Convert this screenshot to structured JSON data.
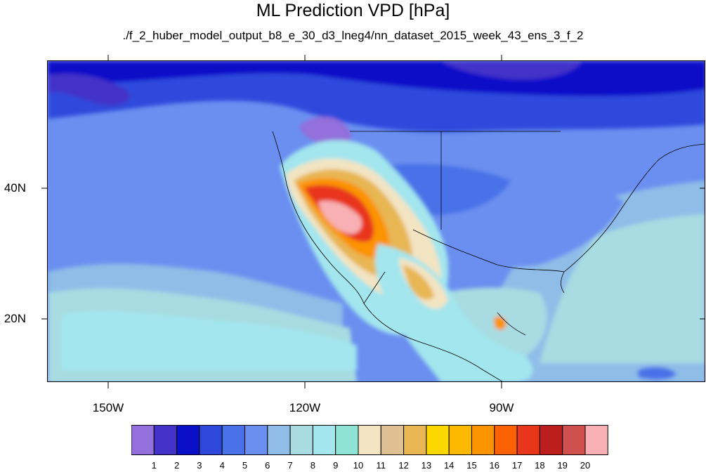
{
  "title": "ML Prediction VPD [hPa]",
  "subtitle": "./f_2_huber_model_output_b8_e_30_d3_lneg4/nn_dataset_2015_week_43_ens_3_f_2",
  "map": {
    "region": "North America and adjacent Pacific/Atlantic",
    "lon_range": [
      -160,
      -60
    ],
    "lat_range": [
      10,
      59
    ],
    "y_ticks": [
      {
        "value": 40,
        "label": "40N"
      },
      {
        "value": 20,
        "label": "20N"
      }
    ],
    "x_ticks": [
      {
        "value": -150,
        "label": "150W"
      },
      {
        "value": -120,
        "label": "120W"
      },
      {
        "value": -90,
        "label": "90W"
      }
    ],
    "highest_values_region": "Southwestern United States (Nevada, Arizona, Southern California)",
    "lowest_values_region": "Northern Pacific and Canada"
  },
  "colorbar": {
    "labels": [
      "1",
      "2",
      "3",
      "4",
      "5",
      "6",
      "7",
      "8",
      "9",
      "10",
      "11",
      "12",
      "13",
      "14",
      "15",
      "16",
      "17",
      "18",
      "19",
      "20"
    ],
    "colors": [
      "#9370db",
      "#4332c8",
      "#0a0fc8",
      "#2e48dc",
      "#4a72e8",
      "#6a8ff0",
      "#8fbde8",
      "#a8dce2",
      "#a3e6ee",
      "#8fe3d4",
      "#f3e4c2",
      "#dfc094",
      "#e8b652",
      "#fdd700",
      "#fdb800",
      "#fc9300",
      "#fc6204",
      "#e8361a",
      "#bc1e1e",
      "#d05050",
      "#f8b0b4"
    ]
  }
}
